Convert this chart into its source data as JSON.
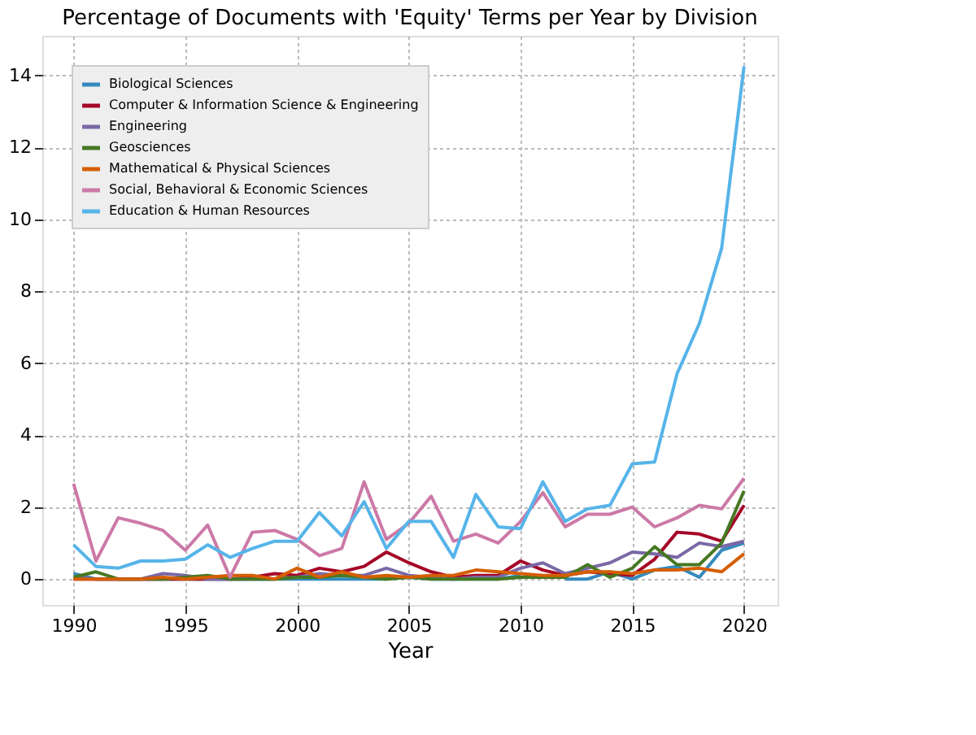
{
  "chart_data": {
    "type": "line",
    "title": "Percentage of Documents with 'Equity' Terms per Year by Division",
    "xlabel": "Year",
    "x": [
      1990,
      1991,
      1992,
      1993,
      1994,
      1995,
      1996,
      1997,
      1998,
      1999,
      2000,
      2001,
      2002,
      2003,
      2004,
      2005,
      2006,
      2007,
      2008,
      2009,
      2010,
      2011,
      2012,
      2013,
      2014,
      2015,
      2016,
      2017,
      2018,
      2019,
      2020
    ],
    "series": [
      {
        "name": "Biological Sciences",
        "color": "#348abd",
        "values": [
          0.15,
          0,
          0,
          0,
          0,
          0,
          0,
          0,
          0,
          0,
          0,
          0,
          0,
          0,
          0,
          0.05,
          0,
          0,
          0,
          0,
          0.1,
          null,
          0,
          0,
          0.2,
          0,
          0.25,
          0.35,
          0.05,
          0.8,
          1.0
        ]
      },
      {
        "name": "Computer & Information Science & Engineering",
        "color": "#a60628",
        "values": [
          0,
          0,
          0,
          0,
          0,
          0,
          0,
          0,
          0.05,
          0.15,
          0.1,
          0.3,
          0.2,
          0.35,
          0.75,
          0.45,
          0.2,
          0.05,
          0.1,
          0.1,
          0.5,
          0.25,
          0.1,
          0.2,
          0.15,
          0.1,
          0.55,
          1.3,
          1.25,
          1.05,
          2.05
        ]
      },
      {
        "name": "Engineering",
        "color": "#7a68a6",
        "values": [
          0.05,
          0,
          0,
          0,
          0.15,
          0.1,
          0,
          0,
          0,
          0,
          0.05,
          0.15,
          0.1,
          0.1,
          0.3,
          0.1,
          0.05,
          0,
          0.05,
          0.05,
          0.3,
          0.45,
          0.15,
          0.3,
          0.45,
          0.75,
          0.7,
          0.6,
          1.0,
          0.9,
          1.05
        ]
      },
      {
        "name": "Geosciences",
        "color": "#467821",
        "values": [
          0.05,
          0.2,
          0,
          0,
          0,
          0.05,
          0.1,
          0,
          0,
          0,
          0.05,
          0.05,
          0.1,
          0.05,
          0,
          0.05,
          0,
          0,
          0,
          0,
          0.05,
          0.05,
          0.05,
          0.4,
          0.05,
          0.3,
          0.9,
          0.4,
          0.4,
          1.0,
          2.45
        ]
      },
      {
        "name": "Mathematical & Physical Sciences",
        "color": "#d55e00",
        "values": [
          0,
          0,
          0,
          0,
          0.05,
          0,
          0.05,
          0.1,
          0.1,
          0,
          0.3,
          0.05,
          0.2,
          0.05,
          0.1,
          0.05,
          0.1,
          0.1,
          0.25,
          0.2,
          0.15,
          0.1,
          0.1,
          0.2,
          0.2,
          0.15,
          0.25,
          0.25,
          0.3,
          0.2,
          0.7
        ]
      },
      {
        "name": "Social, Behavioral & Economic Sciences",
        "color": "#cc79a7",
        "values": [
          2.65,
          0.5,
          1.7,
          1.55,
          1.35,
          0.8,
          1.5,
          0.05,
          1.3,
          1.35,
          1.1,
          0.65,
          0.85,
          2.7,
          1.1,
          1.55,
          2.3,
          1.05,
          1.25,
          1.0,
          1.6,
          2.4,
          1.45,
          1.8,
          1.8,
          2.0,
          1.45,
          1.7,
          2.05,
          1.95,
          2.8
        ]
      },
      {
        "name": "Education & Human Resources",
        "color": "#56b4e9",
        "values": [
          0.95,
          0.35,
          0.3,
          0.5,
          0.5,
          0.55,
          0.95,
          0.6,
          0.85,
          1.05,
          1.05,
          1.85,
          1.2,
          2.15,
          0.85,
          1.6,
          1.6,
          0.6,
          2.35,
          1.45,
          1.4,
          2.7,
          1.6,
          1.95,
          2.05,
          3.2,
          3.25,
          5.7,
          7.1,
          9.2,
          14.25
        ]
      }
    ],
    "xlim": [
      1988.6,
      2021.5
    ],
    "ylim": [
      -0.72,
      15.1
    ],
    "xticks": [
      1990,
      1995,
      2000,
      2005,
      2010,
      2015,
      2020
    ],
    "yticks": [
      0,
      2,
      4,
      6,
      8,
      10,
      12,
      14
    ],
    "grid": true,
    "legend": "top left",
    "marker": "none",
    "line_style": "solid"
  }
}
